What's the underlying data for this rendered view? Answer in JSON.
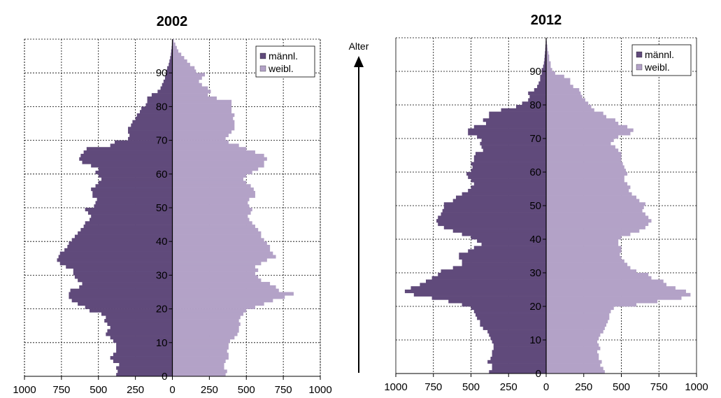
{
  "axis_label": "Alter",
  "colors": {
    "male": "#604a7b",
    "female": "#b3a2c7",
    "grid": "#000000"
  },
  "chart_data": [
    {
      "type": "bar",
      "orientation": "population-pyramid",
      "title": "2002",
      "xlim": [
        -1000,
        1000
      ],
      "xticks": [
        -1000,
        -750,
        -500,
        -250,
        0,
        250,
        500,
        750,
        1000
      ],
      "xtick_labels": [
        "1000",
        "750",
        "500",
        "250",
        "0",
        "250",
        "500",
        "750",
        "1000"
      ],
      "ylim": [
        0,
        100
      ],
      "yticks": [
        0,
        10,
        20,
        30,
        40,
        50,
        60,
        70,
        80,
        90
      ],
      "grid": true,
      "legend": {
        "placement": "top-right",
        "entries": [
          "männl.",
          "weibl."
        ]
      },
      "ages": [
        0,
        1,
        2,
        3,
        4,
        5,
        6,
        7,
        8,
        9,
        10,
        11,
        12,
        13,
        14,
        15,
        16,
        17,
        18,
        19,
        20,
        21,
        22,
        23,
        24,
        25,
        26,
        27,
        28,
        29,
        30,
        31,
        32,
        33,
        34,
        35,
        36,
        37,
        38,
        39,
        40,
        41,
        42,
        43,
        44,
        45,
        46,
        47,
        48,
        49,
        50,
        51,
        52,
        53,
        54,
        55,
        56,
        57,
        58,
        59,
        60,
        61,
        62,
        63,
        64,
        65,
        66,
        67,
        68,
        69,
        70,
        71,
        72,
        73,
        74,
        75,
        76,
        77,
        78,
        79,
        80,
        81,
        82,
        83,
        84,
        85,
        86,
        87,
        88,
        89,
        90,
        91,
        92,
        93,
        94,
        95,
        96,
        97,
        98,
        99
      ],
      "series": [
        {
          "name": "männl.",
          "values": [
            380,
            370,
            380,
            360,
            400,
            420,
            400,
            380,
            380,
            380,
            400,
            420,
            450,
            440,
            420,
            440,
            460,
            450,
            480,
            560,
            590,
            640,
            680,
            700,
            700,
            690,
            630,
            610,
            640,
            660,
            670,
            670,
            720,
            760,
            780,
            770,
            760,
            730,
            710,
            700,
            680,
            660,
            640,
            620,
            600,
            590,
            560,
            550,
            570,
            590,
            530,
            520,
            510,
            540,
            540,
            550,
            520,
            500,
            480,
            500,
            520,
            500,
            550,
            610,
            630,
            620,
            600,
            580,
            420,
            390,
            300,
            290,
            300,
            300,
            280,
            270,
            250,
            240,
            220,
            210,
            180,
            170,
            170,
            140,
            100,
            80,
            70,
            60,
            50,
            45,
            40,
            35,
            25,
            20,
            15,
            10,
            8,
            5,
            3,
            2
          ]
        },
        {
          "name": "weibl.",
          "values": [
            360,
            370,
            350,
            350,
            360,
            380,
            380,
            370,
            380,
            380,
            390,
            420,
            440,
            450,
            450,
            460,
            450,
            460,
            480,
            500,
            560,
            620,
            680,
            760,
            820,
            720,
            700,
            660,
            600,
            580,
            560,
            580,
            560,
            600,
            640,
            700,
            680,
            660,
            660,
            640,
            620,
            600,
            600,
            580,
            560,
            540,
            520,
            510,
            530,
            540,
            520,
            510,
            520,
            560,
            560,
            550,
            530,
            500,
            480,
            500,
            540,
            580,
            620,
            620,
            640,
            620,
            560,
            500,
            450,
            380,
            360,
            380,
            400,
            420,
            420,
            420,
            410,
            420,
            400,
            400,
            400,
            400,
            300,
            240,
            260,
            240,
            200,
            180,
            200,
            220,
            160,
            150,
            120,
            100,
            80,
            60,
            40,
            30,
            20,
            10
          ]
        }
      ]
    },
    {
      "type": "bar",
      "orientation": "population-pyramid",
      "title": "2012",
      "xlim": [
        -1000,
        1000
      ],
      "xticks": [
        -1000,
        -750,
        -500,
        -250,
        0,
        250,
        500,
        750,
        1000
      ],
      "xtick_labels": [
        "1000",
        "750",
        "500",
        "250",
        "0",
        "250",
        "500",
        "750",
        "1000"
      ],
      "ylim": [
        0,
        100
      ],
      "yticks": [
        0,
        10,
        20,
        30,
        40,
        50,
        60,
        70,
        80,
        90
      ],
      "grid": true,
      "legend": {
        "placement": "top-right",
        "entries": [
          "männl.",
          "weibl."
        ]
      },
      "ages": [
        0,
        1,
        2,
        3,
        4,
        5,
        6,
        7,
        8,
        9,
        10,
        11,
        12,
        13,
        14,
        15,
        16,
        17,
        18,
        19,
        20,
        21,
        22,
        23,
        24,
        25,
        26,
        27,
        28,
        29,
        30,
        31,
        32,
        33,
        34,
        35,
        36,
        37,
        38,
        39,
        40,
        41,
        42,
        43,
        44,
        45,
        46,
        47,
        48,
        49,
        50,
        51,
        52,
        53,
        54,
        55,
        56,
        57,
        58,
        59,
        60,
        61,
        62,
        63,
        64,
        65,
        66,
        67,
        68,
        69,
        70,
        71,
        72,
        73,
        74,
        75,
        76,
        77,
        78,
        79,
        80,
        81,
        82,
        83,
        84,
        85,
        86,
        87,
        88,
        89,
        90,
        91,
        92,
        93,
        94,
        95,
        96,
        97,
        98,
        99
      ],
      "series": [
        {
          "name": "männl.",
          "values": [
            380,
            360,
            360,
            390,
            370,
            360,
            360,
            350,
            350,
            360,
            370,
            380,
            390,
            420,
            440,
            440,
            460,
            470,
            480,
            500,
            560,
            650,
            760,
            880,
            940,
            900,
            840,
            800,
            760,
            720,
            700,
            620,
            560,
            560,
            580,
            580,
            520,
            480,
            430,
            460,
            500,
            560,
            620,
            680,
            720,
            730,
            720,
            700,
            690,
            680,
            680,
            620,
            600,
            560,
            520,
            500,
            480,
            500,
            520,
            530,
            500,
            490,
            500,
            480,
            480,
            470,
            420,
            430,
            440,
            430,
            460,
            520,
            520,
            480,
            400,
            420,
            380,
            380,
            300,
            200,
            160,
            120,
            110,
            120,
            80,
            60,
            50,
            40,
            40,
            30,
            30,
            20,
            15,
            12,
            10,
            8,
            6,
            5,
            3,
            2
          ]
        },
        {
          "name": "weibl.",
          "values": [
            390,
            380,
            360,
            370,
            350,
            350,
            340,
            360,
            350,
            340,
            350,
            360,
            380,
            390,
            400,
            410,
            420,
            420,
            430,
            450,
            600,
            740,
            900,
            960,
            930,
            860,
            800,
            780,
            700,
            680,
            600,
            560,
            540,
            520,
            500,
            490,
            500,
            500,
            480,
            480,
            500,
            560,
            620,
            660,
            680,
            700,
            680,
            660,
            640,
            650,
            660,
            620,
            600,
            570,
            550,
            560,
            540,
            520,
            520,
            540,
            530,
            520,
            510,
            500,
            500,
            500,
            480,
            460,
            430,
            450,
            480,
            560,
            580,
            540,
            480,
            460,
            400,
            380,
            320,
            300,
            280,
            260,
            240,
            230,
            220,
            180,
            160,
            160,
            120,
            60,
            40,
            30,
            30,
            20,
            20,
            15,
            10,
            8,
            5,
            3
          ]
        }
      ]
    }
  ]
}
